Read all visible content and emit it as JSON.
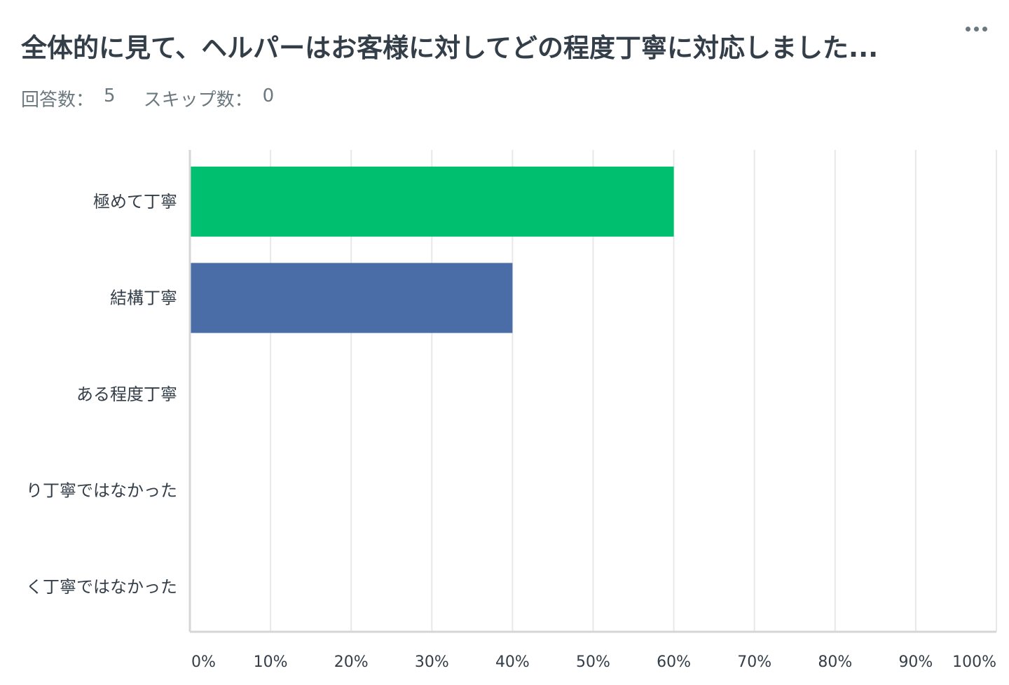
{
  "question": {
    "title": "全体的に見て、ヘルパーはお客様に対してどの程度丁寧に対応しました...",
    "more_label": "…"
  },
  "meta": {
    "answered_label": "回答数：",
    "answered_value": "5",
    "skipped_label": "スキップ数：",
    "skipped_value": "0"
  },
  "chart_data": {
    "type": "bar",
    "orientation": "horizontal",
    "categories": [
      "極めて丁寧",
      "結構丁寧",
      "ある程度丁寧",
      "り丁寧ではなかった",
      "く丁寧ではなかった"
    ],
    "values": [
      60,
      40,
      0,
      0,
      0
    ],
    "bar_colors": [
      "#00bf6f",
      "#4a6da7",
      "#4a6da7",
      "#4a6da7",
      "#4a6da7"
    ],
    "xlim": [
      0,
      100
    ],
    "x_ticks": [
      "0%",
      "10%",
      "20%",
      "30%",
      "40%",
      "50%",
      "60%",
      "70%",
      "80%",
      "90%",
      "100%"
    ],
    "grid": true
  },
  "colors": {
    "gridline": "#e8e8e8",
    "axis": "#d6d6d6",
    "text": "#333e48",
    "muted": "#6b787f"
  }
}
